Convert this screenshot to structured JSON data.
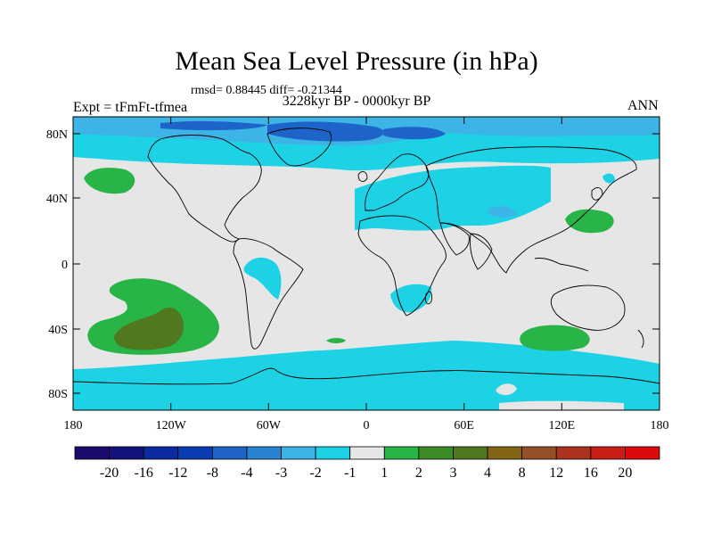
{
  "header": {
    "title": "Mean Sea Level Pressure (in hPa)",
    "stats": "rmsd= 0.88445 diff= -0.21344",
    "period": "3228kyr BP - 0000kyr BP",
    "experiment": "Expt = tFmFt-tfmea",
    "season": "ANN"
  },
  "axes": {
    "lat_labels": [
      "80N",
      "40N",
      "0",
      "40S",
      "80S"
    ],
    "lon_labels": [
      "180",
      "120W",
      "60W",
      "0",
      "60E",
      "120E",
      "180"
    ]
  },
  "colorbar": {
    "labels": [
      "-20",
      "-16",
      "-12",
      "-8",
      "-4",
      "-3",
      "-2",
      "-1",
      "1",
      "2",
      "3",
      "4",
      "8",
      "12",
      "16",
      "20"
    ],
    "colors": [
      "#1a0a6e",
      "#13137f",
      "#0a2aa0",
      "#0a3cb4",
      "#1e64c8",
      "#2a82d2",
      "#3cb4e6",
      "#1ed2e6",
      "#e6e6e6",
      "#28b446",
      "#3c8c28",
      "#50781e",
      "#826414",
      "#965028",
      "#aa321e",
      "#c81e14",
      "#dc0a0a"
    ]
  },
  "map_colors": {
    "neutral": "#e6e6e6",
    "light_blue": "#1ed2e6",
    "mid_blue": "#3cb4e6",
    "dark_blue": "#1e64c8",
    "green": "#28b446",
    "dark_green": "#50781e",
    "coast": "#000000"
  }
}
